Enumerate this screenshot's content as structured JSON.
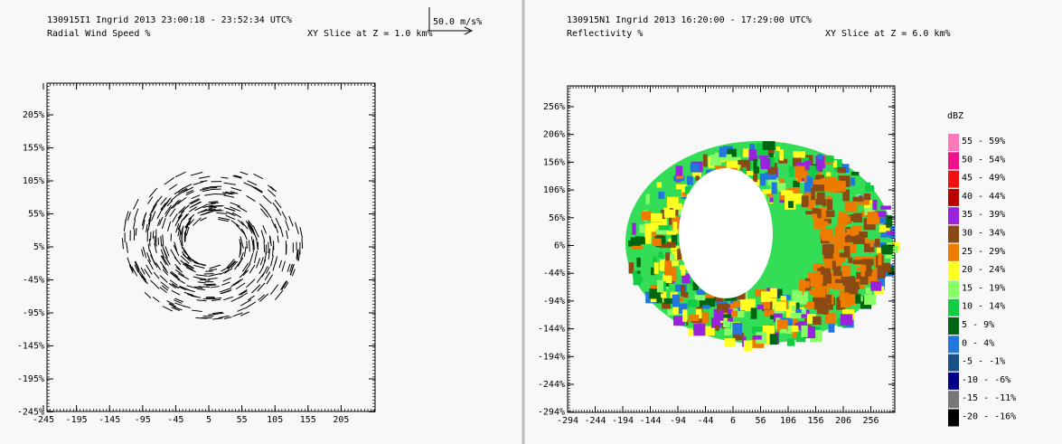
{
  "panels": [
    {
      "header": {
        "line1": "130915I1 Ingrid 2013  23:00:18 - 23:52:34 UTC%",
        "line2": "Radial Wind Speed %",
        "slice": "XY Slice at Z = 1.0 km%",
        "scale": "50.0 m/s%"
      },
      "yticks": [
        "205%",
        "155%",
        "105%",
        "55%",
        "5%",
        "-45%",
        "-95%",
        "-145%",
        "-195%",
        "-245%"
      ],
      "xticks": [
        "-245",
        "-195",
        "-145",
        "-95",
        "-45",
        "5",
        "55",
        "105",
        "155",
        "205"
      ]
    },
    {
      "header": {
        "line1": "130915N1 Ingrid 2013  16:20:00 - 17:29:00 UTC%",
        "line2": "Reflectivity %",
        "slice": "XY Slice at Z = 6.0 km%"
      },
      "yticks": [
        "256%",
        "206%",
        "156%",
        "106%",
        "56%",
        "6%",
        "-44%",
        "-94%",
        "-144%",
        "-194%",
        "-244%",
        "-294%"
      ],
      "xticks": [
        "-294",
        "-244",
        "-194",
        "-144",
        "-94",
        "-44",
        "6",
        "56",
        "106",
        "156",
        "206",
        "256"
      ]
    }
  ],
  "legend": {
    "title": "dBZ",
    "entries": [
      {
        "label": "55 - 59%",
        "color": "#ff77bb"
      },
      {
        "label": "50 - 54%",
        "color": "#ee1188"
      },
      {
        "label": "45 - 49%",
        "color": "#ee1111"
      },
      {
        "label": "40 - 44%",
        "color": "#bb0000"
      },
      {
        "label": "35 - 39%",
        "color": "#9922dd"
      },
      {
        "label": "30 - 34%",
        "color": "#8b4a14"
      },
      {
        "label": "25 - 29%",
        "color": "#ee7a00"
      },
      {
        "label": "20 - 24%",
        "color": "#ffff22"
      },
      {
        "label": "15 - 19%",
        "color": "#88ff66"
      },
      {
        "label": "10 - 14%",
        "color": "#11cc44"
      },
      {
        "label": "5 - 9%",
        "color": "#006611"
      },
      {
        "label": "0 - 4%",
        "color": "#2277dd"
      },
      {
        "label": "-5 - -1%",
        "color": "#1a4f8a"
      },
      {
        "label": "-10 - -6%",
        "color": "#000088"
      },
      {
        "label": "-15 - -11%",
        "color": "#777777"
      },
      {
        "label": "-20 - -16%",
        "color": "#000000"
      }
    ]
  }
}
